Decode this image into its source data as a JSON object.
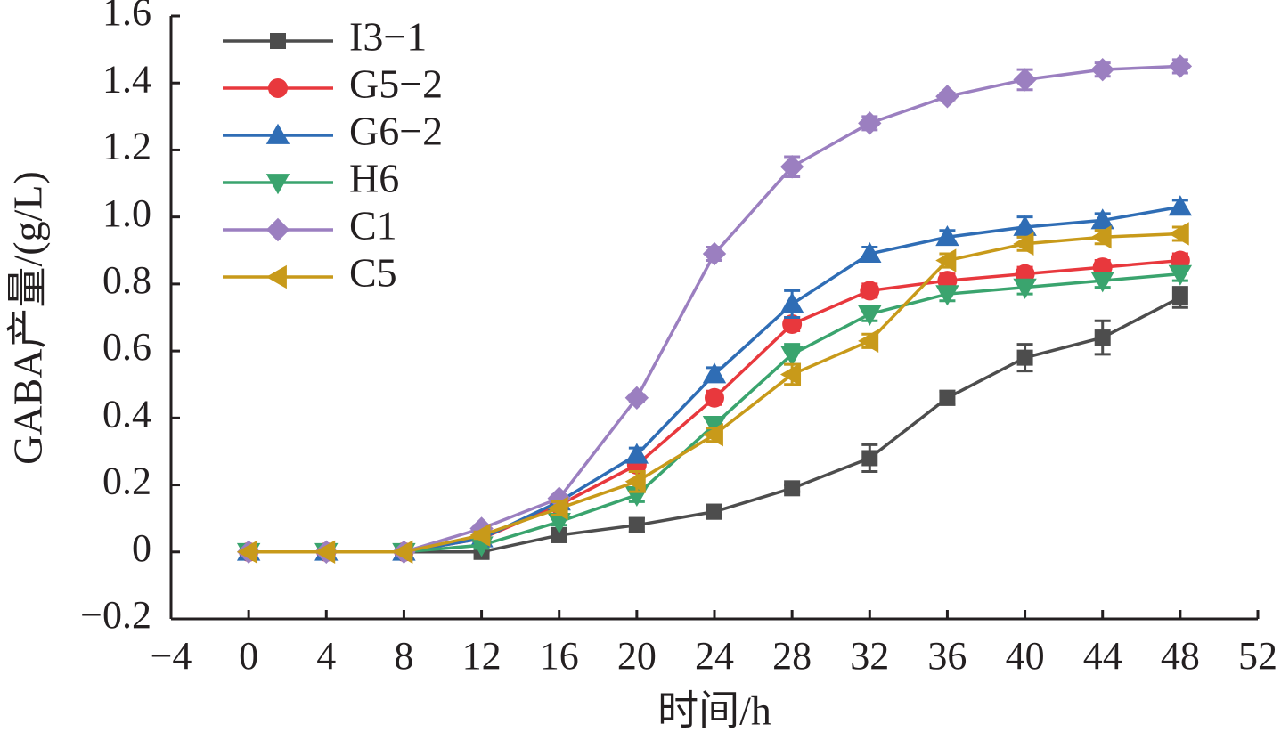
{
  "chart_data": {
    "type": "line",
    "x_label": "时间/h",
    "y_label": "GABA产量/(g/L)",
    "x": [
      0,
      4,
      8,
      12,
      16,
      20,
      24,
      28,
      32,
      36,
      40,
      44,
      48
    ],
    "xlim": [
      -4,
      52
    ],
    "xticks": [
      {
        "value": -4,
        "label": "−4"
      },
      0,
      4,
      8,
      12,
      16,
      20,
      24,
      28,
      32,
      36,
      40,
      44,
      48,
      52
    ],
    "ylim": [
      -0.2,
      1.6
    ],
    "yticks": [
      {
        "value": -0.2,
        "label": "−0.2"
      },
      0,
      0.2,
      0.4,
      0.6,
      0.8,
      {
        "value": 1,
        "label": "1.0"
      },
      1.2,
      1.4,
      1.6
    ],
    "legend": "top-left",
    "series": [
      {
        "name": "I3−1",
        "color": "#4d4d4d",
        "marker": "square",
        "values": [
          0,
          0,
          0,
          0,
          0.05,
          0.08,
          0.12,
          0.19,
          0.28,
          0.46,
          0.58,
          0.64,
          0.76
        ],
        "errors": [
          0,
          0,
          0,
          0,
          0.01,
          0.02,
          0.02,
          0.01,
          0.04,
          0.02,
          0.04,
          0.05,
          0.03
        ]
      },
      {
        "name": "G5−2",
        "color": "#e8383d",
        "marker": "circle",
        "values": [
          0,
          0,
          0,
          0.04,
          0.14,
          0.26,
          0.46,
          0.68,
          0.78,
          0.81,
          0.83,
          0.85,
          0.87
        ],
        "errors": [
          0,
          0,
          0,
          0.01,
          0.01,
          0.02,
          0.02,
          0.02,
          0.02,
          0.02,
          0.02,
          0.02,
          0.02
        ]
      },
      {
        "name": "G6−2",
        "color": "#2f6db5",
        "marker": "triangle-up",
        "values": [
          0,
          0,
          0,
          0.04,
          0.15,
          0.29,
          0.53,
          0.74,
          0.89,
          0.94,
          0.97,
          0.99,
          1.03
        ],
        "errors": [
          0,
          0,
          0,
          0.01,
          0.01,
          0.02,
          0.02,
          0.04,
          0.02,
          0.02,
          0.03,
          0.02,
          0.02
        ]
      },
      {
        "name": "H6",
        "color": "#3aa46e",
        "marker": "triangle-down",
        "values": [
          0,
          0,
          0,
          0.02,
          0.09,
          0.17,
          0.38,
          0.59,
          0.71,
          0.77,
          0.79,
          0.81,
          0.83
        ],
        "errors": [
          0,
          0,
          0,
          0.01,
          0.01,
          0.02,
          0.02,
          0.03,
          0.02,
          0.02,
          0.02,
          0.02,
          0.02
        ]
      },
      {
        "name": "C1",
        "color": "#9b7fc0",
        "marker": "diamond",
        "values": [
          0,
          0,
          0,
          0.07,
          0.16,
          0.46,
          0.89,
          1.15,
          1.28,
          1.36,
          1.41,
          1.44,
          1.45
        ],
        "errors": [
          0,
          0,
          0,
          0.01,
          0.01,
          0.01,
          0.02,
          0.03,
          0.02,
          0.01,
          0.03,
          0.02,
          0.02
        ]
      },
      {
        "name": "C5",
        "color": "#c89a1a",
        "marker": "triangle-left",
        "values": [
          0,
          0,
          0,
          0.05,
          0.13,
          0.21,
          0.35,
          0.53,
          0.63,
          0.87,
          0.92,
          0.94,
          0.95
        ],
        "errors": [
          0,
          0,
          0,
          0.01,
          0.02,
          0.03,
          0.02,
          0.03,
          0.02,
          0.02,
          0.02,
          0.02,
          0.02
        ]
      }
    ]
  }
}
